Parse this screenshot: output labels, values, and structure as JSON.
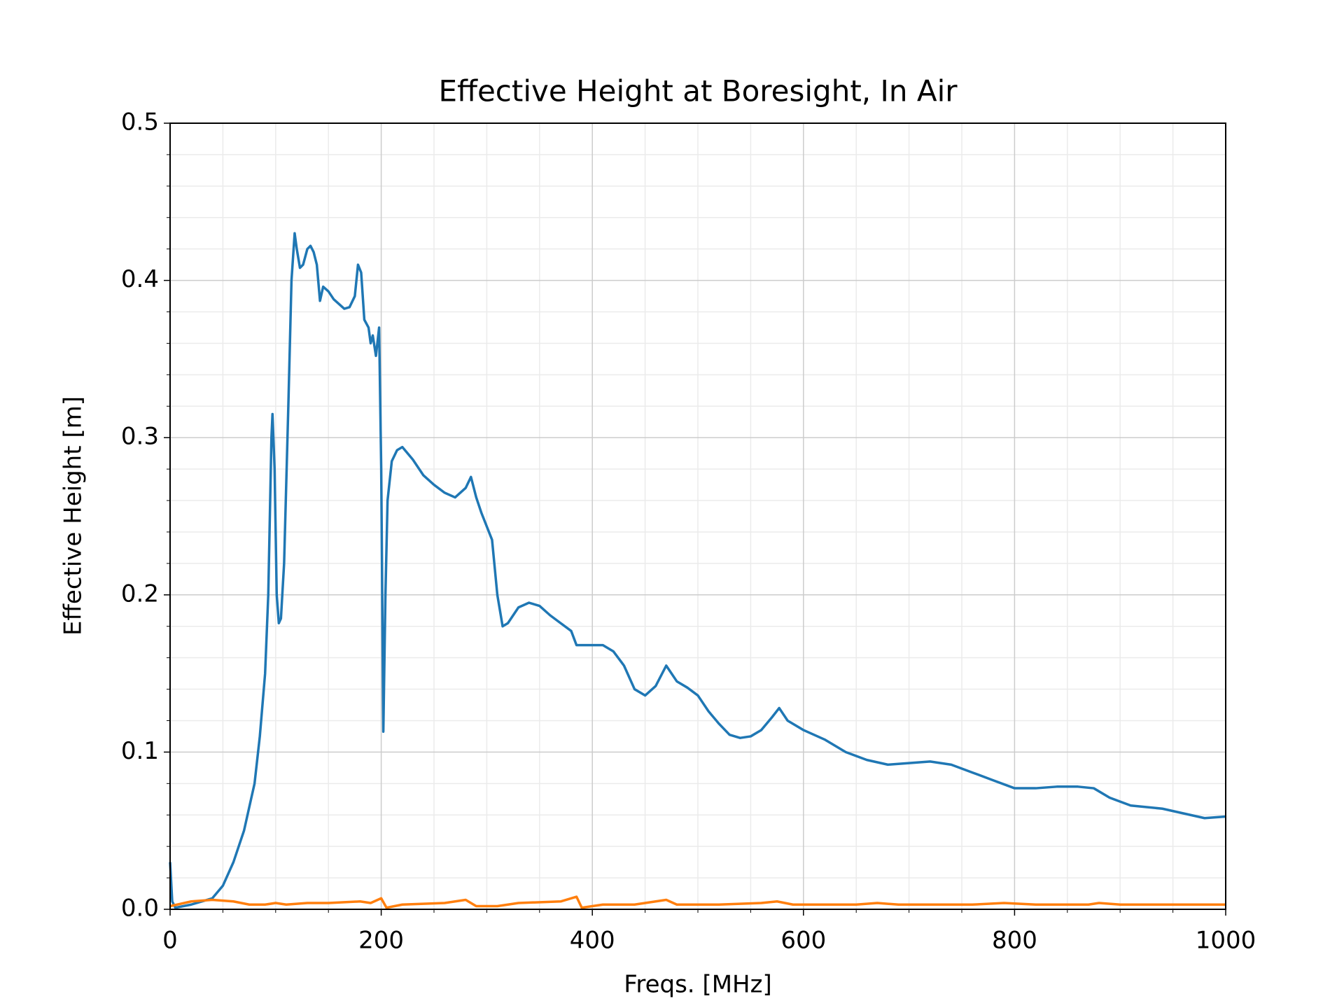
{
  "chart_data": {
    "type": "line",
    "title": "Effective Height at Boresight, In Air",
    "x_label": "Freqs. [MHz]",
    "y_label": "Effective Height [m]",
    "xlim": [
      0,
      1000
    ],
    "ylim": [
      0,
      0.5
    ],
    "xticks": [
      0,
      200,
      400,
      600,
      800,
      1000
    ],
    "yticks": [
      {
        "value": 0,
        "label": "0.0"
      },
      0.1,
      0.2,
      0.3,
      0.4,
      0.5
    ],
    "xminorticks": [
      50,
      100,
      150,
      250,
      300,
      350,
      450,
      500,
      550,
      650,
      700,
      750,
      850,
      900,
      950
    ],
    "yminorticks": [
      0.02,
      0.04,
      0.06,
      0.08,
      0.12,
      0.14,
      0.16,
      0.18,
      0.22,
      0.24,
      0.26,
      0.28,
      0.32,
      0.34,
      0.36,
      0.38,
      0.42,
      0.44,
      0.46,
      0.48
    ],
    "grid": true,
    "series": [
      {
        "color": "#1f77b4",
        "x": [
          0,
          2,
          5,
          20,
          30,
          40,
          50,
          60,
          70,
          80,
          85,
          90,
          93,
          96,
          97,
          99,
          101,
          103,
          105,
          108,
          112,
          115,
          118,
          120,
          123,
          126,
          130,
          133,
          136,
          139,
          142,
          145,
          150,
          155,
          160,
          165,
          170,
          175,
          178,
          181,
          184,
          188,
          190,
          192,
          195,
          198,
          200,
          202,
          204,
          206,
          210,
          215,
          220,
          225,
          230,
          240,
          250,
          260,
          270,
          280,
          285,
          290,
          295,
          305,
          310,
          315,
          320,
          330,
          340,
          350,
          360,
          370,
          380,
          385,
          395,
          410,
          420,
          430,
          440,
          450,
          460,
          470,
          480,
          490,
          500,
          510,
          520,
          530,
          540,
          550,
          560,
          570,
          577,
          585,
          600,
          620,
          640,
          660,
          680,
          700,
          720,
          740,
          760,
          780,
          800,
          820,
          840,
          860,
          875,
          890,
          910,
          940,
          960,
          980,
          1000
        ],
        "values": [
          0.03,
          0.005,
          0.001,
          0.003,
          0.005,
          0.007,
          0.015,
          0.03,
          0.05,
          0.08,
          0.11,
          0.15,
          0.2,
          0.3,
          0.315,
          0.28,
          0.2,
          0.182,
          0.185,
          0.22,
          0.32,
          0.4,
          0.43,
          0.42,
          0.408,
          0.41,
          0.42,
          0.422,
          0.418,
          0.41,
          0.387,
          0.396,
          0.393,
          0.388,
          0.385,
          0.382,
          0.383,
          0.39,
          0.41,
          0.405,
          0.375,
          0.37,
          0.36,
          0.365,
          0.352,
          0.37,
          0.28,
          0.113,
          0.2,
          0.26,
          0.285,
          0.292,
          0.294,
          0.29,
          0.286,
          0.276,
          0.27,
          0.265,
          0.262,
          0.268,
          0.275,
          0.262,
          0.252,
          0.235,
          0.2,
          0.18,
          0.182,
          0.192,
          0.195,
          0.193,
          0.187,
          0.182,
          0.177,
          0.168,
          0.168,
          0.168,
          0.164,
          0.155,
          0.14,
          0.136,
          0.142,
          0.155,
          0.145,
          0.141,
          0.136,
          0.126,
          0.118,
          0.111,
          0.109,
          0.11,
          0.114,
          0.122,
          0.128,
          0.12,
          0.114,
          0.108,
          0.1,
          0.095,
          0.092,
          0.093,
          0.094,
          0.092,
          0.087,
          0.082,
          0.077,
          0.077,
          0.078,
          0.078,
          0.077,
          0.071,
          0.066,
          0.064,
          0.061,
          0.058,
          0.059
        ]
      },
      {
        "color": "#ff7f0e",
        "x": [
          0,
          20,
          40,
          60,
          75,
          90,
          100,
          110,
          130,
          150,
          180,
          190,
          200,
          205,
          220,
          260,
          280,
          290,
          310,
          330,
          370,
          385,
          390,
          410,
          440,
          470,
          480,
          520,
          560,
          575,
          590,
          650,
          670,
          690,
          760,
          790,
          820,
          870,
          880,
          900,
          960,
          1000
        ],
        "values": [
          0.002,
          0.005,
          0.006,
          0.005,
          0.003,
          0.003,
          0.004,
          0.003,
          0.004,
          0.004,
          0.005,
          0.004,
          0.007,
          0.001,
          0.003,
          0.004,
          0.006,
          0.002,
          0.002,
          0.004,
          0.005,
          0.008,
          0.001,
          0.003,
          0.003,
          0.006,
          0.003,
          0.003,
          0.004,
          0.005,
          0.003,
          0.003,
          0.004,
          0.003,
          0.003,
          0.004,
          0.003,
          0.003,
          0.004,
          0.003,
          0.003,
          0.003
        ]
      }
    ]
  }
}
